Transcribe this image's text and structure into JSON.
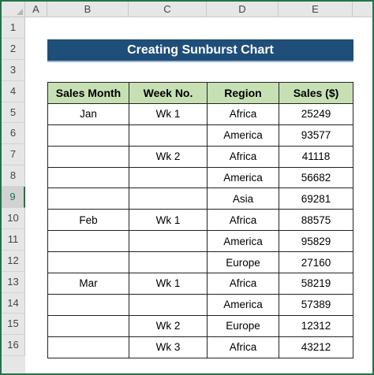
{
  "columns": [
    "A",
    "B",
    "C",
    "D",
    "E"
  ],
  "rows": [
    "1",
    "2",
    "3",
    "4",
    "5",
    "6",
    "7",
    "8",
    "9",
    "10",
    "11",
    "12",
    "13",
    "14",
    "15",
    "16"
  ],
  "title": "Creating Sunburst Chart",
  "table": {
    "headers": [
      "Sales Month",
      "Week No.",
      "Region",
      "Sales ($)"
    ],
    "rows": [
      [
        "Jan",
        "Wk 1",
        "Africa",
        "25249"
      ],
      [
        "",
        "",
        "America",
        "93577"
      ],
      [
        "",
        "Wk 2",
        "Africa",
        "41118"
      ],
      [
        "",
        "",
        "America",
        "56682"
      ],
      [
        "",
        "",
        "Asia",
        "69281"
      ],
      [
        "Feb",
        "Wk 1",
        "Africa",
        "88575"
      ],
      [
        "",
        "",
        "America",
        "95829"
      ],
      [
        "",
        "",
        "Europe",
        "27160"
      ],
      [
        "Mar",
        "Wk 1",
        "Africa",
        "58219"
      ],
      [
        "",
        "",
        "America",
        "57389"
      ],
      [
        "",
        "Wk 2",
        "Europe",
        "12312"
      ],
      [
        "",
        "Wk 3",
        "Africa",
        "43212"
      ]
    ]
  },
  "colors": {
    "title_bg": "#1f4e79",
    "header_bg": "#c6e0b4",
    "accent": "#217346"
  }
}
